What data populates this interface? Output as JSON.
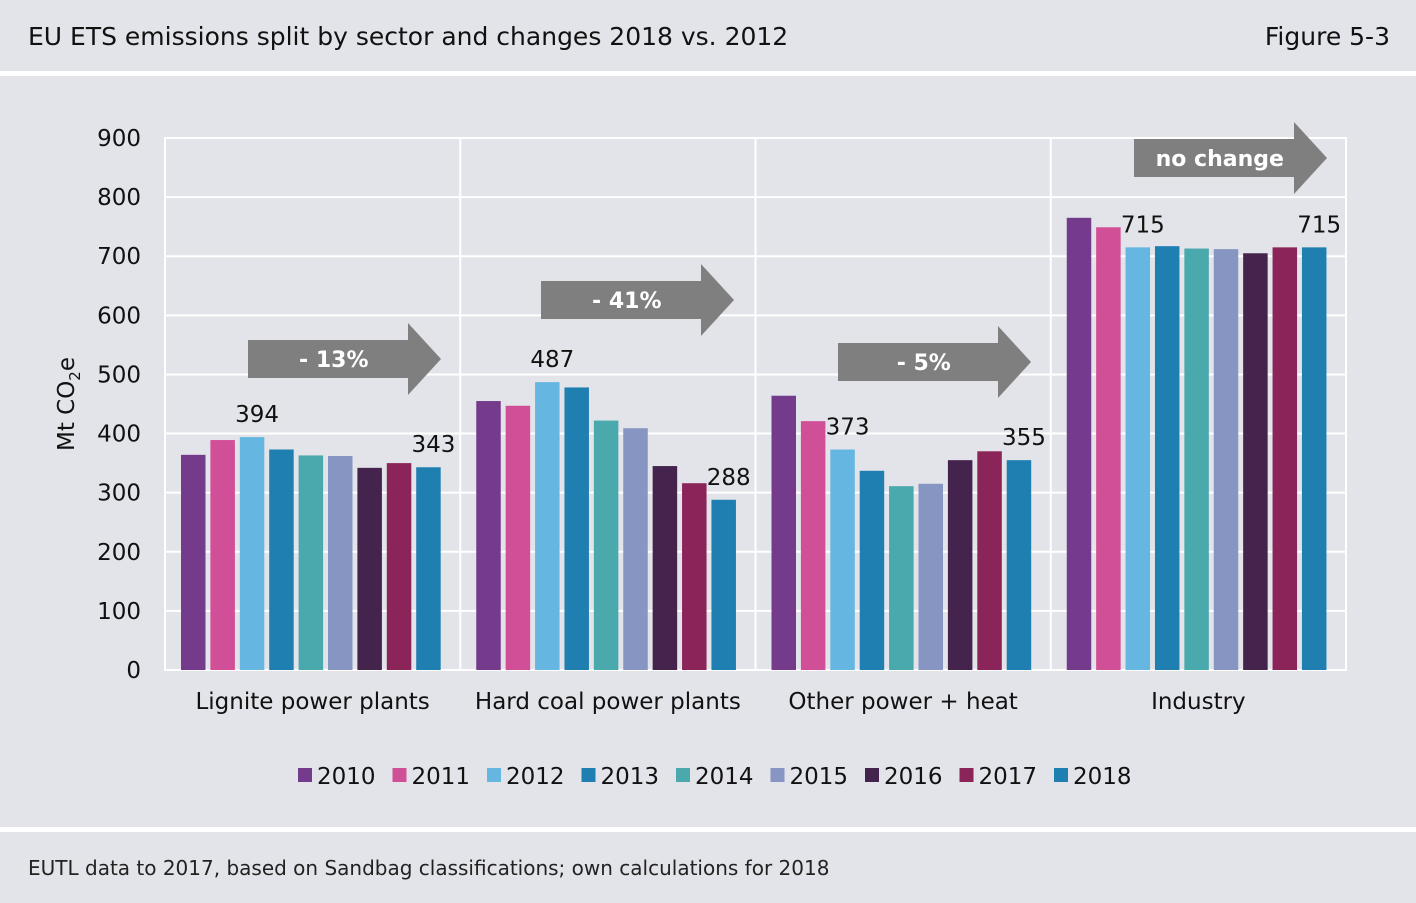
{
  "header": {
    "title": "EU ETS emissions split by sector and changes 2018 vs. 2012",
    "figure_label": "Figure 5-3"
  },
  "footer": {
    "source": "EUTL data to 2017, based on Sandbag classifications; own calculations for 2018"
  },
  "chart_data": {
    "type": "bar",
    "title": "EU ETS emissions split by sector and changes 2018 vs. 2012",
    "ylabel_main": "Mt CO",
    "ylabel_sub": "2",
    "ylabel_tail": "e",
    "ylim": [
      0,
      900
    ],
    "yticks": [
      0,
      100,
      200,
      300,
      400,
      500,
      600,
      700,
      800,
      900
    ],
    "grid": true,
    "legend_position": "bottom",
    "categories": [
      "Lignite power plants",
      "Hard coal power plants",
      "Other power + heat",
      "Industry"
    ],
    "series": [
      {
        "name": "2010",
        "color": "#743b8c",
        "values": [
          364,
          455,
          464,
          765
        ]
      },
      {
        "name": "2011",
        "color": "#d14f96",
        "values": [
          389,
          447,
          421,
          749
        ]
      },
      {
        "name": "2012",
        "color": "#65b7e2",
        "values": [
          394,
          487,
          373,
          715
        ]
      },
      {
        "name": "2013",
        "color": "#1f7fb1",
        "values": [
          373,
          478,
          337,
          717
        ]
      },
      {
        "name": "2014",
        "color": "#49a9ad",
        "values": [
          363,
          422,
          311,
          713
        ]
      },
      {
        "name": "2015",
        "color": "#8695c1",
        "values": [
          362,
          409,
          315,
          712
        ]
      },
      {
        "name": "2016",
        "color": "#44234d",
        "values": [
          342,
          345,
          355,
          705
        ]
      },
      {
        "name": "2017",
        "color": "#8b2458",
        "values": [
          350,
          316,
          370,
          715
        ]
      },
      {
        "name": "2018",
        "color": "#1f7fb1",
        "values": [
          343,
          288,
          355,
          715
        ]
      }
    ],
    "data_labels": [
      {
        "category": 0,
        "series": 2,
        "text": "394"
      },
      {
        "category": 0,
        "series": 8,
        "text": "343"
      },
      {
        "category": 1,
        "series": 2,
        "text": "487"
      },
      {
        "category": 1,
        "series": 8,
        "text": "288"
      },
      {
        "category": 2,
        "series": 2,
        "text": "373"
      },
      {
        "category": 2,
        "series": 8,
        "text": "355"
      },
      {
        "category": 3,
        "series": 2,
        "text": "715"
      },
      {
        "category": 3,
        "series": 8,
        "text": "715"
      }
    ],
    "annotations": [
      {
        "category": 0,
        "text": "- 13%",
        "color": "#7f7f7f"
      },
      {
        "category": 1,
        "text": "- 41%",
        "color": "#7f7f7f"
      },
      {
        "category": 2,
        "text": "- 5%",
        "color": "#7f7f7f"
      },
      {
        "category": 3,
        "text": "no change",
        "color": "#7f7f7f"
      }
    ]
  }
}
